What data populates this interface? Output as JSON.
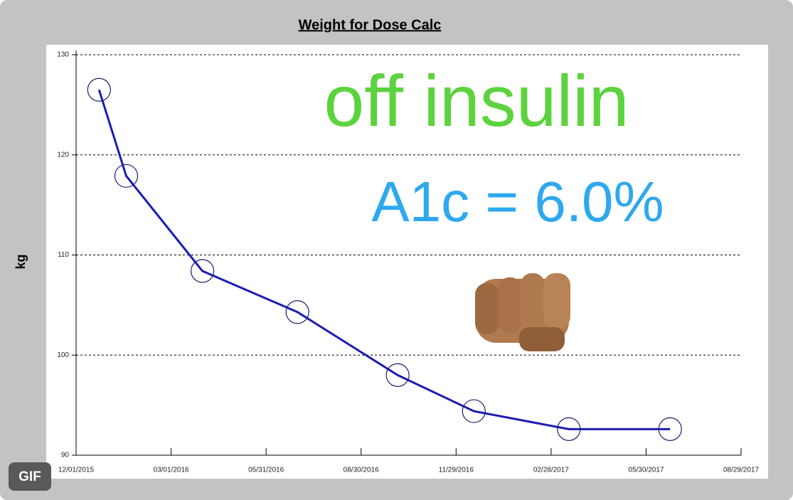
{
  "chart_data": {
    "type": "line",
    "title": "Weight for Dose Calc",
    "y_label": "kg",
    "x": [
      "2015-12-23",
      "2016-01-18",
      "2016-03-31",
      "2016-06-30",
      "2016-10-04",
      "2016-12-16",
      "2017-03-17",
      "2017-06-22"
    ],
    "series": [
      {
        "name": "Weight",
        "color": "#1c1cb4",
        "values": [
          126.5,
          117.9,
          108.4,
          104.3,
          98.0,
          94.4,
          92.6,
          92.6
        ]
      }
    ],
    "xlim": [
      "2015-12-01",
      "2017-08-29"
    ],
    "xticks": [
      {
        "value": "2015-12-01",
        "label": "12/01/2015"
      },
      {
        "value": "2016-03-01",
        "label": "03/01/2016"
      },
      {
        "value": "2016-05-31",
        "label": "05/31/2016"
      },
      {
        "value": "2016-08-30",
        "label": "08/30/2016"
      },
      {
        "value": "2016-11-29",
        "label": "11/29/2016"
      },
      {
        "value": "2017-02-28",
        "label": "02/28/2017"
      },
      {
        "value": "2017-05-30",
        "label": "05/30/2017"
      },
      {
        "value": "2017-08-29",
        "label": "08/29/2017"
      }
    ],
    "ylim": [
      90,
      130
    ],
    "yticks": [
      90,
      100,
      110,
      120,
      130
    ],
    "grid": true,
    "annotations": [
      "off insulin",
      "A1c = 6.0%"
    ],
    "annotation_colors": [
      "#5dd23f",
      "#2ea8ee"
    ]
  },
  "badge": "GIF"
}
